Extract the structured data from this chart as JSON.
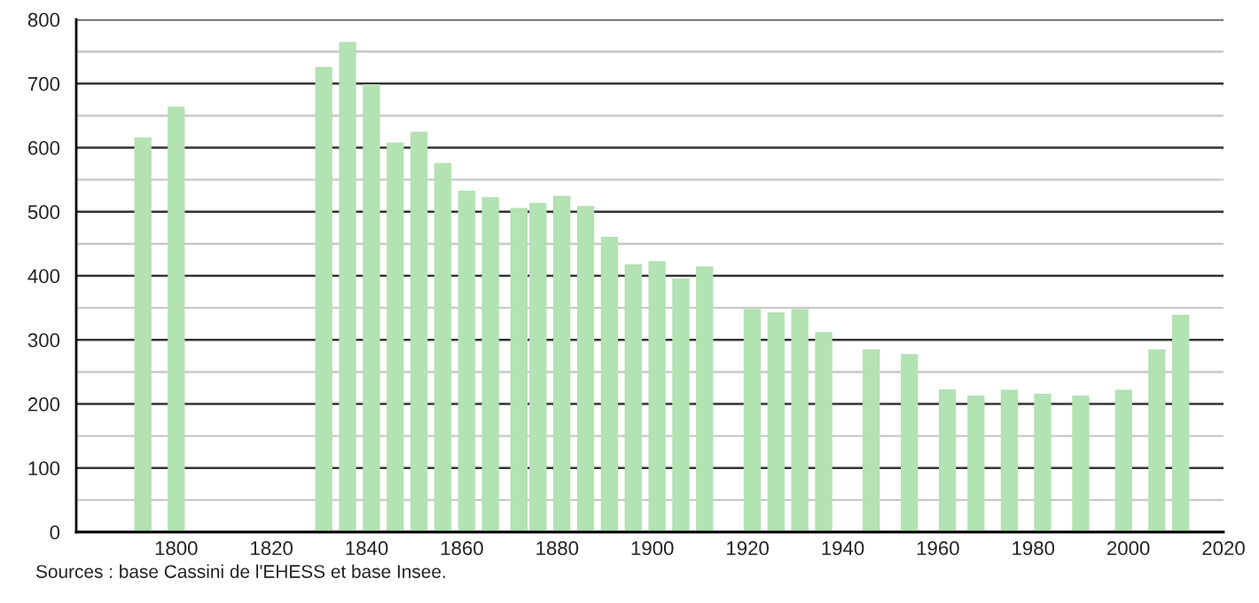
{
  "chart_data": {
    "type": "bar",
    "color": "#b3e2b3",
    "x": [
      1793,
      1800,
      1831,
      1836,
      1841,
      1846,
      1851,
      1856,
      1861,
      1866,
      1872,
      1876,
      1881,
      1886,
      1891,
      1896,
      1901,
      1906,
      1911,
      1921,
      1926,
      1931,
      1936,
      1946,
      1954,
      1962,
      1968,
      1975,
      1982,
      1990,
      1999,
      2006,
      2011
    ],
    "values": [
      616,
      664,
      726,
      765,
      699,
      608,
      625,
      576,
      533,
      523,
      506,
      514,
      525,
      509,
      461,
      418,
      423,
      396,
      415,
      348,
      343,
      348,
      312,
      285,
      278,
      223,
      213,
      222,
      216,
      213,
      222,
      285,
      339
    ],
    "xlim": [
      1779,
      2020
    ],
    "xticks": [
      1800,
      1820,
      1840,
      1860,
      1880,
      1900,
      1920,
      1940,
      1960,
      1980,
      2000,
      2020
    ],
    "ylim": [
      0,
      800
    ],
    "yticks": [
      0,
      {
        "value": 50,
        "label": null
      },
      100,
      {
        "value": 150,
        "label": null
      },
      200,
      {
        "value": 250,
        "label": null
      },
      300,
      {
        "value": 350,
        "label": null
      },
      400,
      {
        "value": 450,
        "label": null
      },
      500,
      {
        "value": 550,
        "label": null
      },
      600,
      {
        "value": 650,
        "label": null
      },
      700,
      {
        "value": 750,
        "label": null
      },
      800
    ],
    "grid": "y",
    "annotations": [
      "Sources : base Cassini de l'EHESS et base Insee."
    ]
  }
}
